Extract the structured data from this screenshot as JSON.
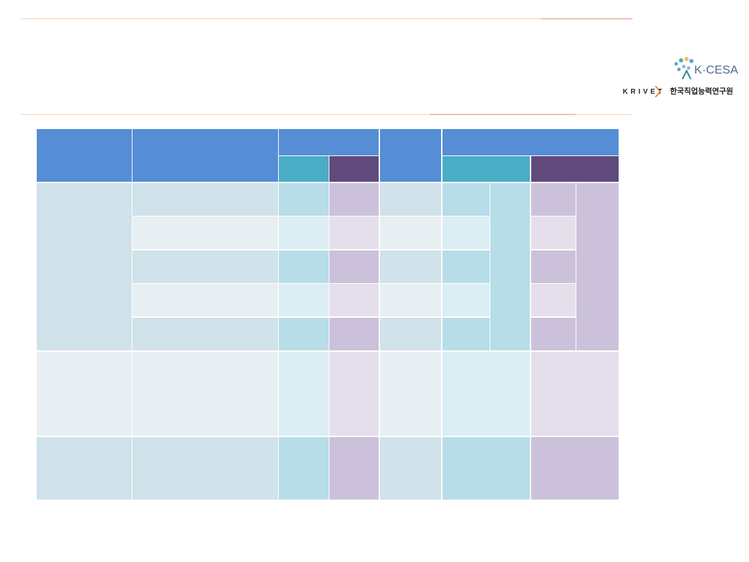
{
  "logo": {
    "name": "K·CESA",
    "org_en": "KRIVET",
    "org_ko": "한국직업능력연구원"
  }
}
